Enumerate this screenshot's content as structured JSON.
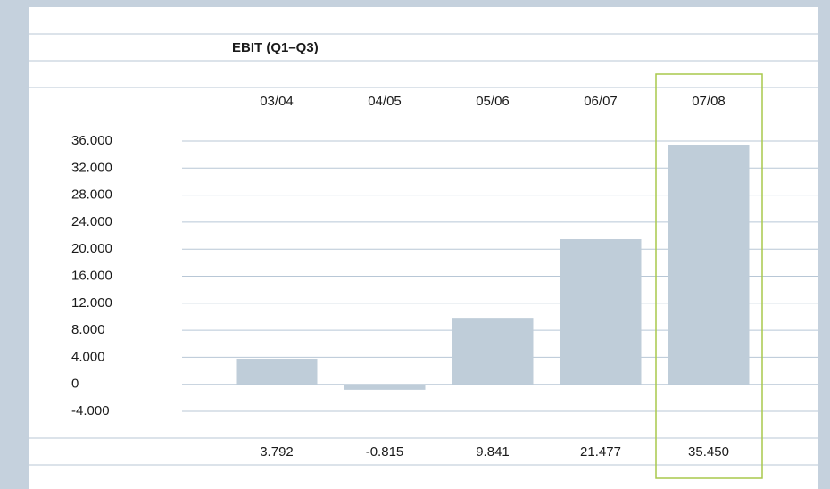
{
  "chart_data": {
    "type": "bar",
    "title": "EBIT (Q1–Q3)",
    "categories": [
      "03/04",
      "04/05",
      "05/06",
      "06/07",
      "07/08"
    ],
    "values": [
      3792,
      -815,
      9841,
      21477,
      35450
    ],
    "value_labels": [
      "3.792",
      "-0.815",
      "9.841",
      "21.477",
      "35.450"
    ],
    "color": "#bfcdd9",
    "ylim": [
      -4000,
      36000
    ],
    "yticks": [
      {
        "value": 36000,
        "label": "36.000"
      },
      {
        "value": 32000,
        "label": "32.000"
      },
      {
        "value": 28000,
        "label": "28.000"
      },
      {
        "value": 24000,
        "label": "24.000"
      },
      {
        "value": 20000,
        "label": "20.000"
      },
      {
        "value": 16000,
        "label": "16.000"
      },
      {
        "value": 12000,
        "label": "12.000"
      },
      {
        "value": 8000,
        "label": "8.000"
      },
      {
        "value": 4000,
        "label": "4.000"
      },
      0,
      {
        "value": -4000,
        "label": "-4.000"
      }
    ],
    "grid": true,
    "highlight": 4,
    "highlight_color": "#a9c94c"
  }
}
